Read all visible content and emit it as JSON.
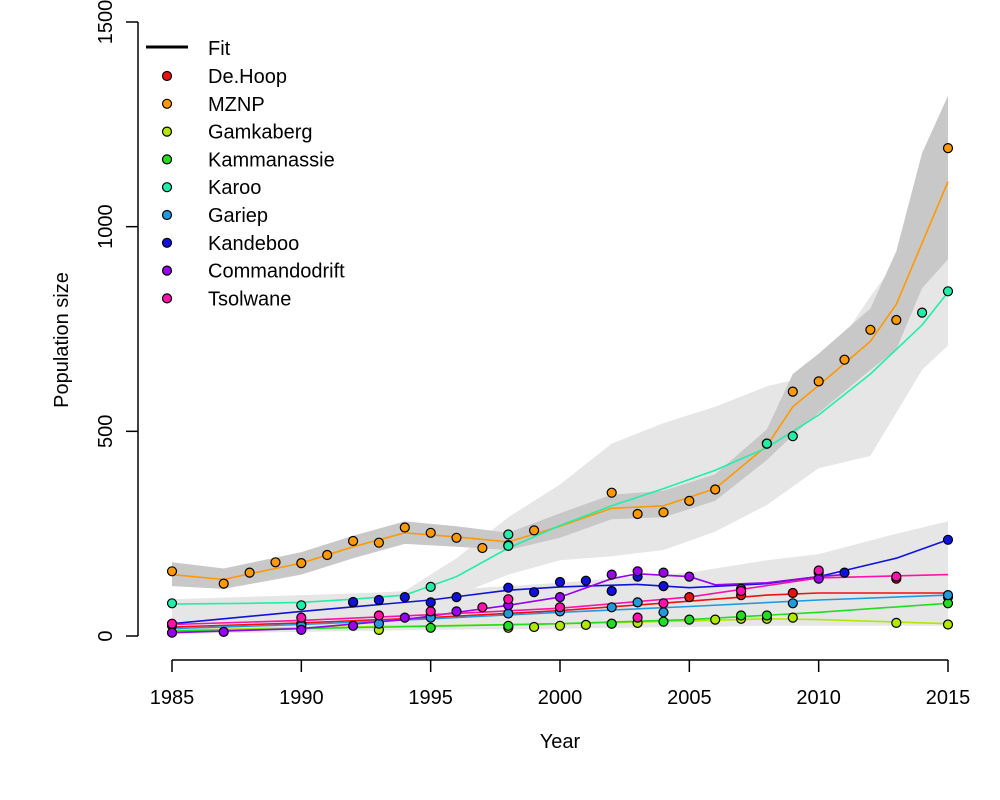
{
  "chart_data": {
    "type": "scatter",
    "xlabel": "Year",
    "ylabel": "Population size",
    "xlim": [
      1985,
      2015
    ],
    "ylim": [
      0,
      1500
    ],
    "x_ticks": [
      1985,
      1990,
      1995,
      2000,
      2005,
      2010,
      2015
    ],
    "y_ticks": [
      0,
      500,
      1000,
      1500
    ],
    "grid": false,
    "legend_position": "top-left",
    "legend_fit_label": "Fit",
    "series": [
      {
        "name": "De.Hoop",
        "color": "#ee1111",
        "points": [
          [
            1985,
            25
          ],
          [
            1990,
            30
          ],
          [
            1995,
            50
          ],
          [
            2000,
            70
          ],
          [
            2005,
            95
          ],
          [
            2007,
            100
          ],
          [
            2009,
            105
          ],
          [
            2010,
            155
          ],
          [
            2013,
            140
          ],
          [
            2015,
            95
          ]
        ],
        "fit": [
          [
            1985,
            22
          ],
          [
            1990,
            32
          ],
          [
            1995,
            45
          ],
          [
            2000,
            62
          ],
          [
            2005,
            85
          ],
          [
            2008,
            100
          ],
          [
            2010,
            105
          ],
          [
            2015,
            105
          ]
        ]
      },
      {
        "name": "MZNP",
        "color": "#ff9900",
        "points": [
          [
            1985,
            158
          ],
          [
            1987,
            128
          ],
          [
            1988,
            155
          ],
          [
            1989,
            180
          ],
          [
            1990,
            178
          ],
          [
            1991,
            198
          ],
          [
            1992,
            232
          ],
          [
            1993,
            228
          ],
          [
            1994,
            265
          ],
          [
            1995,
            252
          ],
          [
            1996,
            240
          ],
          [
            1997,
            215
          ],
          [
            1998,
            222
          ],
          [
            1999,
            258
          ],
          [
            2002,
            350
          ],
          [
            2003,
            298
          ],
          [
            2004,
            302
          ],
          [
            2005,
            330
          ],
          [
            2006,
            358
          ],
          [
            2008,
            470
          ],
          [
            2009,
            597
          ],
          [
            2010,
            622
          ],
          [
            2011,
            675
          ],
          [
            2012,
            748
          ],
          [
            2013,
            772
          ],
          [
            2015,
            1192
          ]
        ],
        "fit": [
          [
            1985,
            150
          ],
          [
            1987,
            138
          ],
          [
            1988,
            152
          ],
          [
            1990,
            178
          ],
          [
            1992,
            218
          ],
          [
            1994,
            252
          ],
          [
            1996,
            242
          ],
          [
            1998,
            230
          ],
          [
            2000,
            268
          ],
          [
            2002,
            312
          ],
          [
            2004,
            318
          ],
          [
            2006,
            360
          ],
          [
            2008,
            465
          ],
          [
            2009,
            560
          ],
          [
            2010,
            612
          ],
          [
            2012,
            720
          ],
          [
            2013,
            810
          ],
          [
            2015,
            1110
          ]
        ],
        "ci": {
          "x": [
            1985,
            1987,
            1990,
            1992,
            1994,
            1996,
            1998,
            2000,
            2002,
            2004,
            2006,
            2008,
            2009,
            2010,
            2012,
            2013,
            2014,
            2015
          ],
          "lo": [
            122,
            115,
            150,
            190,
            225,
            218,
            210,
            240,
            285,
            290,
            330,
            430,
            490,
            545,
            650,
            700,
            850,
            920
          ],
          "hi": [
            180,
            165,
            205,
            245,
            280,
            268,
            252,
            300,
            345,
            355,
            395,
            505,
            640,
            690,
            800,
            940,
            1180,
            1320
          ]
        }
      },
      {
        "name": "Gamkaberg",
        "color": "#b2e800",
        "points": [
          [
            1993,
            15
          ],
          [
            1998,
            20
          ],
          [
            1999,
            22
          ],
          [
            2000,
            25
          ],
          [
            2001,
            27
          ],
          [
            2002,
            30
          ],
          [
            2003,
            32
          ],
          [
            2006,
            40
          ],
          [
            2007,
            42
          ],
          [
            2008,
            42
          ],
          [
            2009,
            45
          ],
          [
            2013,
            32
          ],
          [
            2015,
            28
          ]
        ],
        "fit": [
          [
            1985,
            14
          ],
          [
            1990,
            20
          ],
          [
            1995,
            25
          ],
          [
            2000,
            30
          ],
          [
            2005,
            37
          ],
          [
            2008,
            42
          ],
          [
            2010,
            40
          ],
          [
            2015,
            30
          ]
        ]
      },
      {
        "name": "Kammanassie",
        "color": "#22dd22",
        "points": [
          [
            1995,
            20
          ],
          [
            1998,
            25
          ],
          [
            2002,
            30
          ],
          [
            2004,
            35
          ],
          [
            2005,
            40
          ],
          [
            2007,
            50
          ],
          [
            2008,
            50
          ],
          [
            2015,
            80
          ]
        ],
        "fit": [
          [
            1985,
            12
          ],
          [
            1990,
            18
          ],
          [
            1995,
            24
          ],
          [
            2000,
            30
          ],
          [
            2005,
            40
          ],
          [
            2010,
            58
          ],
          [
            2015,
            80
          ]
        ]
      },
      {
        "name": "Karoo",
        "color": "#22eeaa",
        "points": [
          [
            1985,
            80
          ],
          [
            1990,
            75
          ],
          [
            1992,
            82
          ],
          [
            1995,
            120
          ],
          [
            1998,
            248
          ],
          [
            1998,
            220
          ],
          [
            2008,
            470
          ],
          [
            2009,
            488
          ],
          [
            2014,
            790
          ],
          [
            2015,
            842
          ]
        ],
        "fit": [
          [
            1985,
            78
          ],
          [
            1988,
            80
          ],
          [
            1990,
            82
          ],
          [
            1992,
            90
          ],
          [
            1994,
            100
          ],
          [
            1996,
            145
          ],
          [
            1998,
            215
          ],
          [
            2000,
            270
          ],
          [
            2002,
            318
          ],
          [
            2004,
            360
          ],
          [
            2006,
            405
          ],
          [
            2008,
            460
          ],
          [
            2010,
            540
          ],
          [
            2012,
            640
          ],
          [
            2014,
            760
          ],
          [
            2015,
            840
          ]
        ],
        "ci": {
          "x": [
            1985,
            1990,
            1994,
            1996,
            1998,
            2000,
            2002,
            2004,
            2006,
            2008,
            2010,
            2012,
            2014,
            2015
          ],
          "lo": [
            70,
            72,
            80,
            100,
            150,
            185,
            195,
            210,
            255,
            320,
            410,
            440,
            650,
            710
          ],
          "hi": [
            90,
            95,
            110,
            190,
            290,
            370,
            470,
            520,
            560,
            610,
            640,
            830,
            1000,
            1090
          ]
        }
      },
      {
        "name": "Gariep",
        "color": "#2299dd",
        "points": [
          [
            1990,
            25
          ],
          [
            1993,
            30
          ],
          [
            1995,
            45
          ],
          [
            1998,
            55
          ],
          [
            2000,
            60
          ],
          [
            2002,
            70
          ],
          [
            2003,
            82
          ],
          [
            2004,
            58
          ],
          [
            2009,
            80
          ],
          [
            2015,
            100
          ]
        ],
        "fit": [
          [
            1985,
            18
          ],
          [
            1990,
            28
          ],
          [
            1995,
            42
          ],
          [
            2000,
            58
          ],
          [
            2005,
            72
          ],
          [
            2010,
            88
          ],
          [
            2015,
            100
          ]
        ]
      },
      {
        "name": "Kandeboo",
        "color": "#1111dd",
        "points": [
          [
            1992,
            83
          ],
          [
            1993,
            88
          ],
          [
            1994,
            95
          ],
          [
            1995,
            82
          ],
          [
            1996,
            95
          ],
          [
            1998,
            118
          ],
          [
            1999,
            107
          ],
          [
            2000,
            132
          ],
          [
            2001,
            135
          ],
          [
            2002,
            110
          ],
          [
            2003,
            145
          ],
          [
            2004,
            122
          ],
          [
            2011,
            155
          ],
          [
            2015,
            235
          ]
        ],
        "fit": [
          [
            1985,
            30
          ],
          [
            1990,
            60
          ],
          [
            1995,
            88
          ],
          [
            1998,
            112
          ],
          [
            2000,
            120
          ],
          [
            2003,
            126
          ],
          [
            2005,
            118
          ],
          [
            2008,
            128
          ],
          [
            2010,
            145
          ],
          [
            2013,
            190
          ],
          [
            2015,
            235
          ]
        ]
      },
      {
        "name": "Commandodrift",
        "color": "#9900ee",
        "points": [
          [
            1985,
            8
          ],
          [
            1987,
            10
          ],
          [
            1990,
            15
          ],
          [
            1992,
            25
          ],
          [
            1994,
            45
          ],
          [
            1996,
            60
          ],
          [
            1998,
            75
          ],
          [
            2000,
            95
          ],
          [
            2002,
            150
          ],
          [
            2003,
            158
          ],
          [
            2004,
            155
          ],
          [
            2005,
            145
          ],
          [
            2007,
            115
          ],
          [
            2010,
            140
          ]
        ],
        "fit": [
          [
            1985,
            8
          ],
          [
            1990,
            18
          ],
          [
            1994,
            40
          ],
          [
            1998,
            75
          ],
          [
            2000,
            95
          ],
          [
            2002,
            140
          ],
          [
            2003,
            152
          ],
          [
            2005,
            145
          ],
          [
            2006,
            125
          ],
          [
            2008,
            130
          ],
          [
            2010,
            145
          ],
          [
            2011,
            150
          ]
        ]
      },
      {
        "name": "Tsolwane",
        "color": "#ff11aa",
        "points": [
          [
            1985,
            30
          ],
          [
            1990,
            45
          ],
          [
            1993,
            50
          ],
          [
            1995,
            60
          ],
          [
            1997,
            70
          ],
          [
            1998,
            90
          ],
          [
            2000,
            70
          ],
          [
            2003,
            45
          ],
          [
            2004,
            80
          ],
          [
            2007,
            110
          ],
          [
            2010,
            160
          ],
          [
            2013,
            145
          ]
        ],
        "fit": [
          [
            1985,
            28
          ],
          [
            1990,
            38
          ],
          [
            1995,
            52
          ],
          [
            2000,
            68
          ],
          [
            2005,
            95
          ],
          [
            2010,
            142
          ],
          [
            2015,
            150
          ]
        ]
      }
    ],
    "other_bands": {
      "x": [
        1985,
        1990,
        1995,
        2000,
        2005,
        2008,
        2010,
        2013,
        2015
      ],
      "lo": [
        5,
        10,
        15,
        18,
        22,
        25,
        25,
        25,
        25
      ],
      "hi": [
        90,
        100,
        110,
        130,
        155,
        185,
        200,
        250,
        280
      ]
    }
  }
}
